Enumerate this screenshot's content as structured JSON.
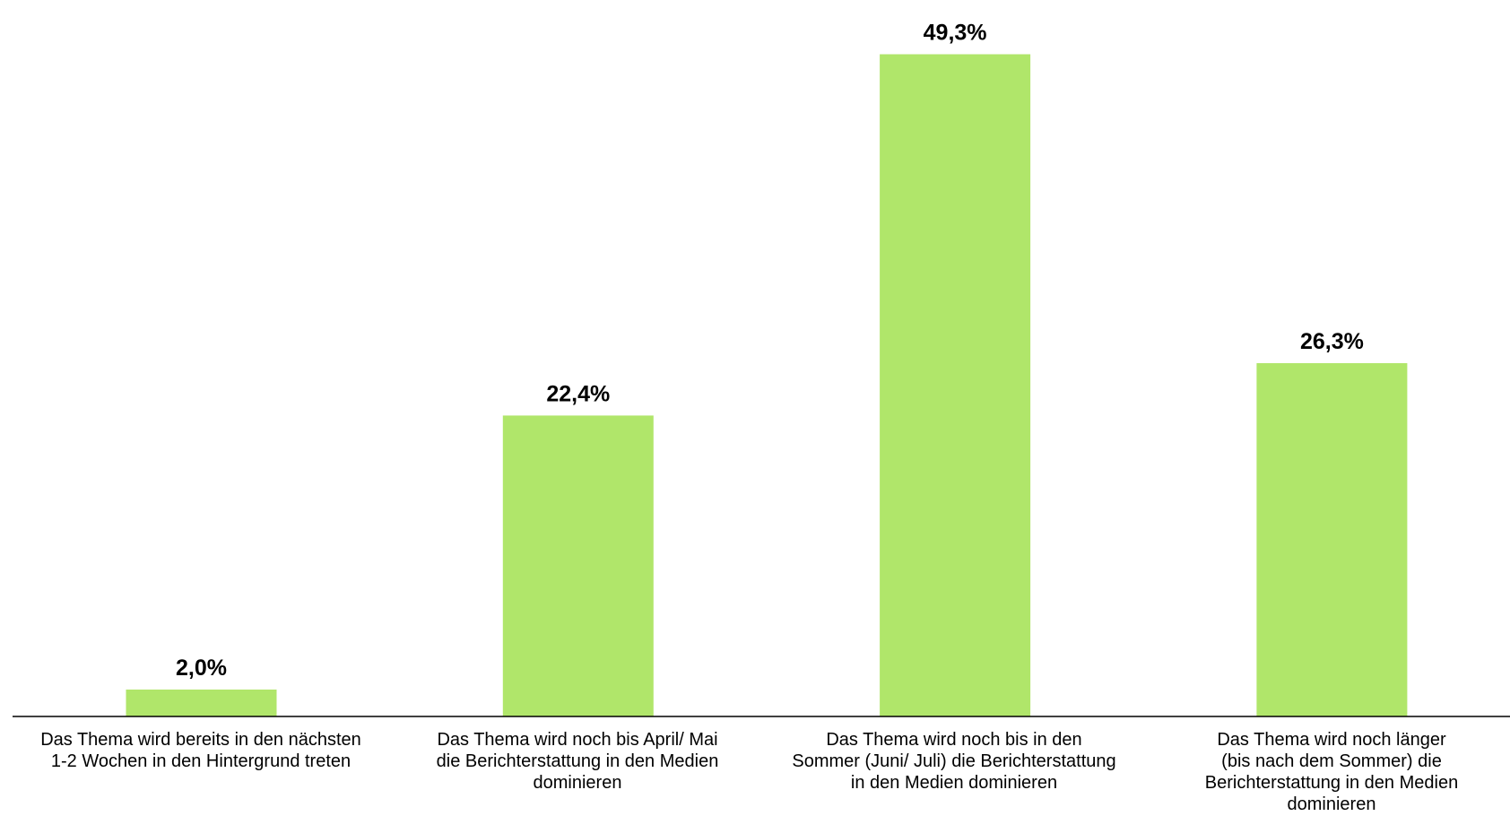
{
  "chart_data": {
    "type": "bar",
    "categories": [
      "Das Thema wird bereits in den nächsten\n1-2 Wochen in den Hintergrund treten",
      "Das Thema wird noch bis April/ Mai\ndie Berichterstattung in den Medien\ndominieren",
      "Das Thema wird noch bis in den\nSommer (Juni/ Juli) die Berichterstattung\nin den Medien dominieren",
      "Das Thema wird noch länger\n(bis nach dem Sommer) die\nBerichterstattung in den Medien\ndominieren"
    ],
    "values": [
      2.0,
      22.4,
      49.3,
      26.3
    ],
    "value_labels": [
      "2,0%",
      "22,4%",
      "49,3%",
      "26,3%"
    ],
    "ylim": [
      0,
      50
    ],
    "grid": false,
    "legend": "none",
    "bar_color": "#B0E66A",
    "axis_color": "#000000",
    "title": "",
    "xlabel": "",
    "ylabel": ""
  }
}
